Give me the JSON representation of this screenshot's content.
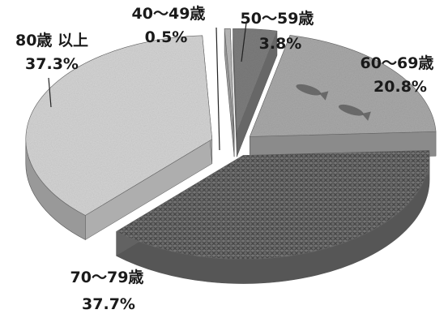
{
  "chart_data": {
    "type": "pie",
    "title": "",
    "slices": [
      {
        "label": "40〜49歳",
        "value": 0.5,
        "value_text": "0.5%",
        "color": "#b9b9b9"
      },
      {
        "label": "50〜59歳",
        "value": 3.8,
        "value_text": "3.8%",
        "color": "#7d7d7d"
      },
      {
        "label": "60〜69歳",
        "value": 20.8,
        "value_text": "20.8%",
        "color": "#a9a9a9"
      },
      {
        "label": "70〜79歳",
        "value": 37.7,
        "value_text": "37.7%",
        "color": "#777777"
      },
      {
        "label": "80歳 以上",
        "value": 37.3,
        "value_text": "37.3%",
        "color": "#d4d4d4"
      }
    ],
    "legend": "none",
    "style": "3d-exploded"
  }
}
